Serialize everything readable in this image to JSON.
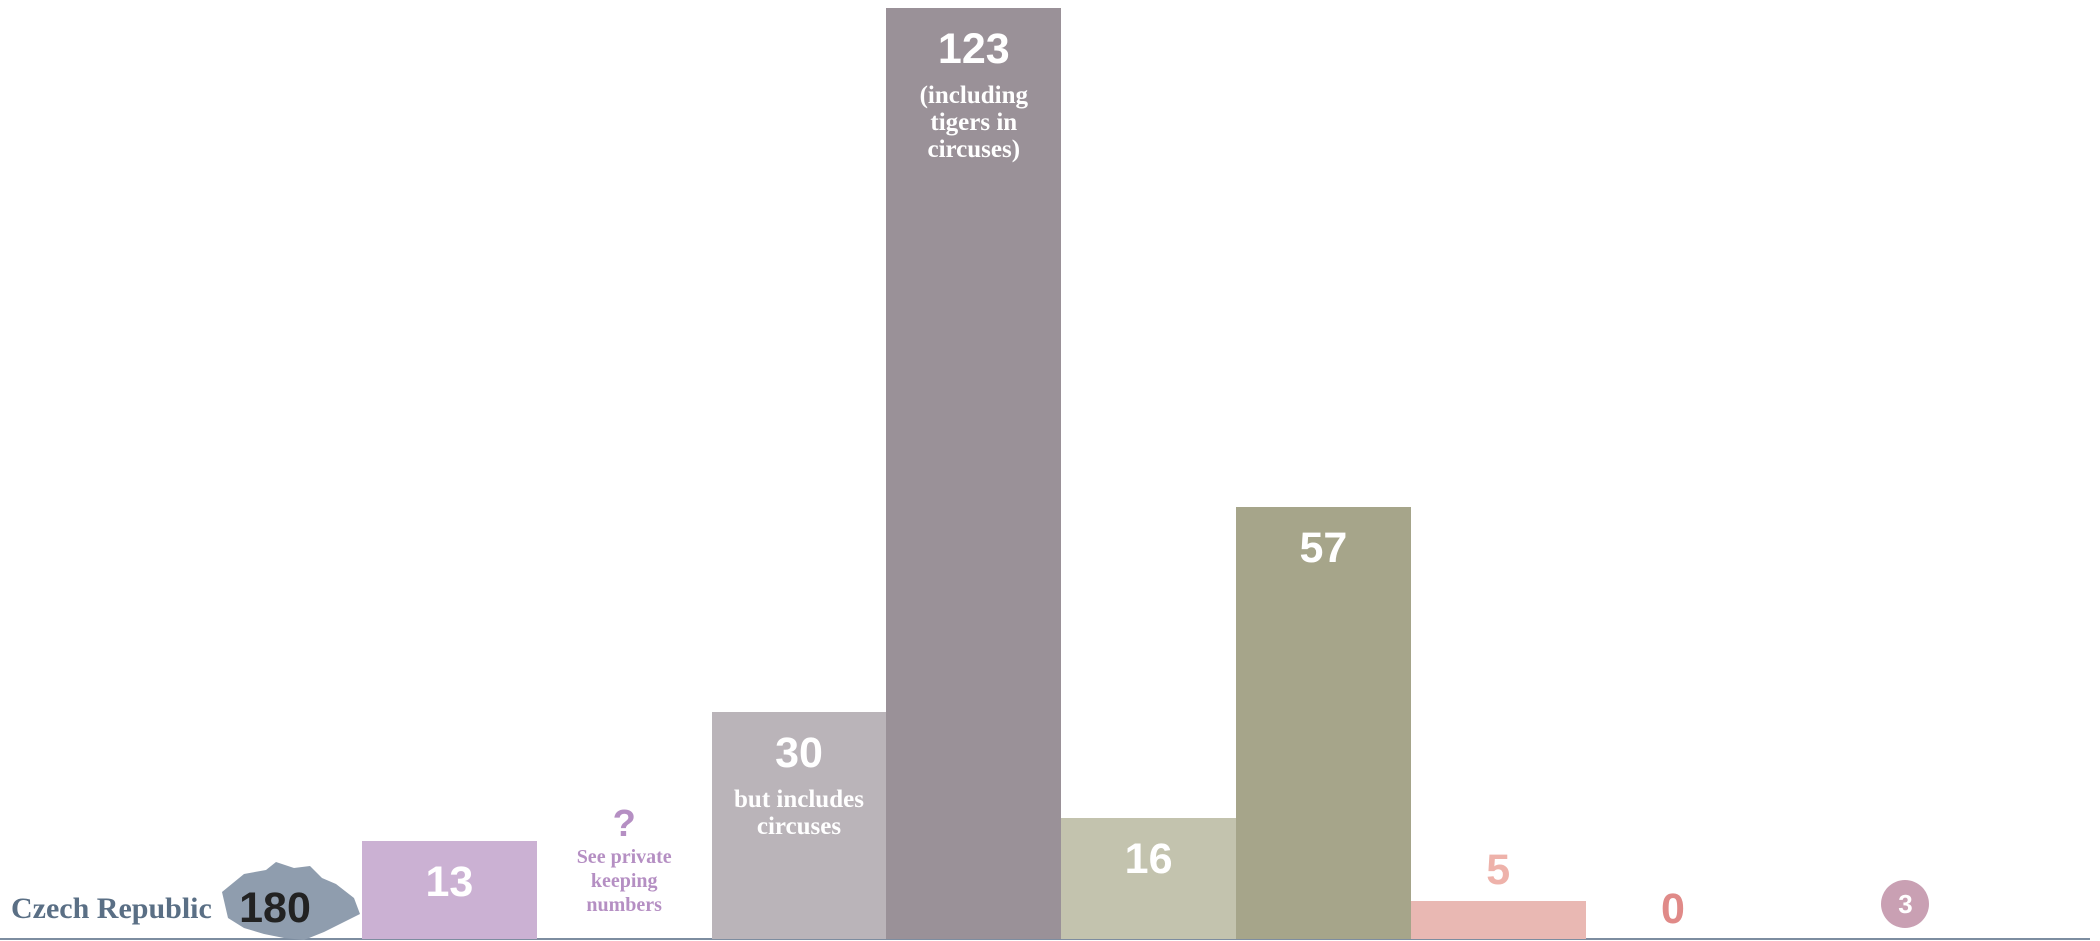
{
  "chart_data": {
    "type": "bar",
    "title": "Czech Republic",
    "total": 180,
    "values": [
      13,
      null,
      30,
      123,
      16,
      57,
      5,
      0,
      3
    ],
    "value_labels": [
      null,
      "?",
      null,
      null,
      null,
      null,
      null,
      null,
      null
    ],
    "notes": [
      null,
      "See private keeping numbers",
      "but includes circuses",
      "(including tigers in circuses)",
      null,
      null,
      null,
      null,
      null
    ],
    "colors": [
      "#cbb1d3",
      "#b58fc3",
      "#bab4b9",
      "#9a9198",
      "#c3c3ae",
      "#a6a58a",
      "#e9b8b3",
      "#e08a88",
      "#c9a0b3"
    ],
    "label_colors": [
      "#ffffff",
      "#b58fc3",
      "#ffffff",
      "#ffffff",
      "#ffffff",
      "#ffffff",
      "#eeb2aa",
      "#e08a88",
      "#ffffff"
    ],
    "shapes": [
      "bar",
      "bar",
      "bar",
      "bar",
      "bar",
      "bar",
      "bar",
      "bar",
      "circle"
    ],
    "ylim": [
      0,
      124
    ]
  }
}
